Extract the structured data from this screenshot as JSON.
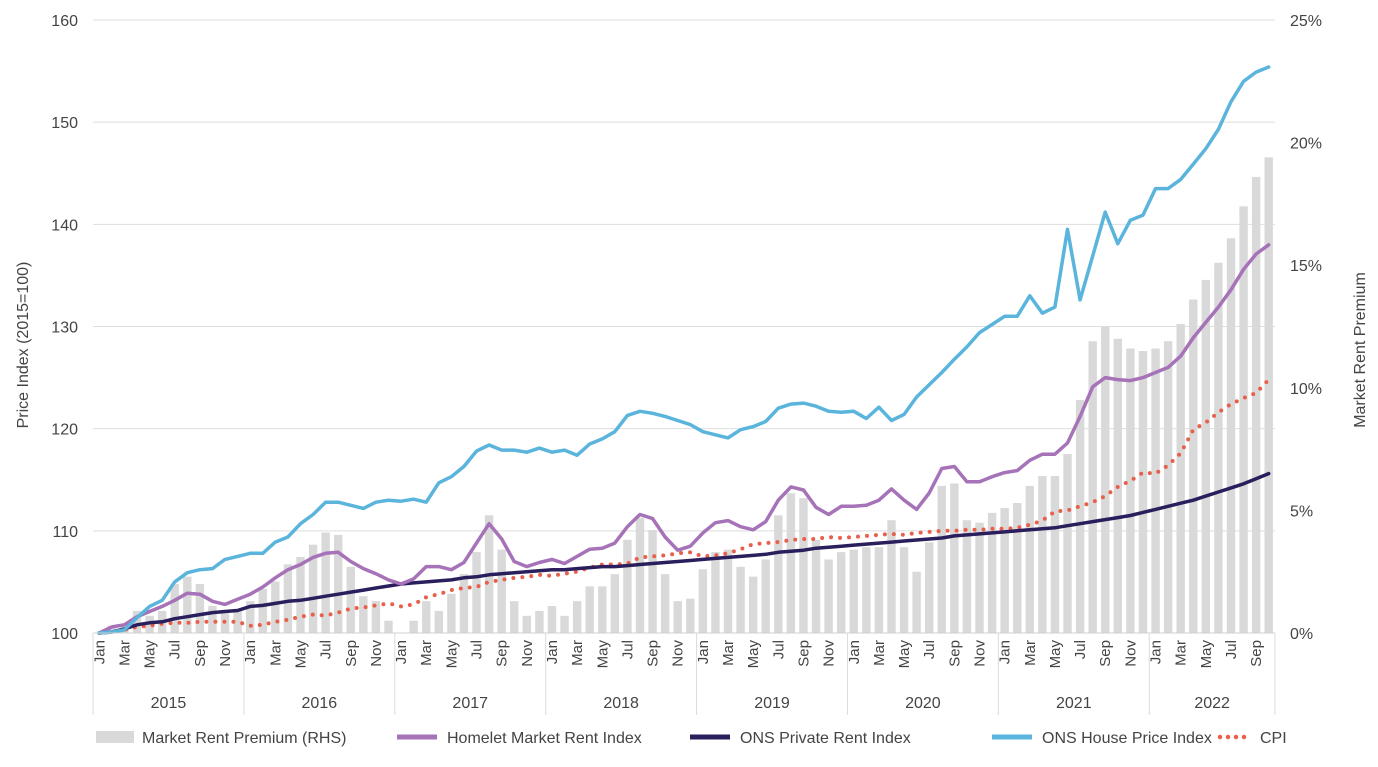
{
  "chart_data": {
    "type": "bar+line",
    "title": "",
    "ylabel": "Price Index (2015=100)",
    "y2label": "Market Rent Premium",
    "ylim": [
      100,
      160
    ],
    "yticks": [
      "100",
      "110",
      "120",
      "130",
      "140",
      "150",
      "160"
    ],
    "y2lim": [
      0,
      25
    ],
    "y2ticks": [
      "0%",
      "5%",
      "10%",
      "15%",
      "20%",
      "25%"
    ],
    "grid": true,
    "legend_position": "bottom",
    "x_axis": {
      "period": [
        "Jan 2015",
        "Oct 2022"
      ],
      "frequency": "monthly",
      "years": [
        "2015",
        "2016",
        "2017",
        "2018",
        "2019",
        "2020",
        "2021",
        "2022"
      ],
      "month_tick_labels": [
        "Jan",
        "Mar",
        "May",
        "Jul",
        "Sep",
        "Nov"
      ]
    },
    "series": [
      {
        "name": "Market Rent Premium (RHS)",
        "type": "bar",
        "axis": "right",
        "color": "#d9d9d9",
        "values": [
          0,
          0.3,
          0.3,
          0.9,
          0.7,
          0.9,
          2.0,
          2.3,
          2.0,
          1.1,
          0.8,
          0.9,
          1.3,
          1.8,
          2.1,
          2.8,
          3.1,
          3.6,
          4.1,
          4.0,
          2.7,
          1.5,
          1.3,
          0.5,
          0,
          0.5,
          1.3,
          0.9,
          1.6,
          2.4,
          3.3,
          4.8,
          3.4,
          1.3,
          0.7,
          0.9,
          1.1,
          0.7,
          1.3,
          1.9,
          1.9,
          2.4,
          3.8,
          4.7,
          4.2,
          2.4,
          1.3,
          1.4,
          2.6,
          3.3,
          3.4,
          2.7,
          2.3,
          3.0,
          4.8,
          5.7,
          5.5,
          3.8,
          3.0,
          3.3,
          3.4,
          3.5,
          3.5,
          4.6,
          3.5,
          2.5,
          3.7,
          6.0,
          6.1,
          4.6,
          4.5,
          4.9,
          5.1,
          5.3,
          6.0,
          6.4,
          6.4,
          7.3,
          9.5,
          11.9,
          12.5,
          12.0,
          11.6,
          11.5,
          11.6,
          11.9,
          12.6,
          13.6,
          14.4,
          15.1,
          16.1,
          17.4,
          18.6,
          19.4
        ]
      },
      {
        "name": "Homelet Market Rent Index",
        "type": "line",
        "axis": "left",
        "color": "#a672b8",
        "values": [
          100,
          100.6,
          100.8,
          101.6,
          102.1,
          102.6,
          103.2,
          103.9,
          103.8,
          103.1,
          102.8,
          103.3,
          103.8,
          104.5,
          105.4,
          106.2,
          106.7,
          107.4,
          107.8,
          107.9,
          107.0,
          106.3,
          105.8,
          105.2,
          104.8,
          105.3,
          106.5,
          106.5,
          106.2,
          106.9,
          108.8,
          110.7,
          109.2,
          107.0,
          106.5,
          106.9,
          107.2,
          106.8,
          107.5,
          108.2,
          108.3,
          108.8,
          110.4,
          111.6,
          111.2,
          109.4,
          108.1,
          108.5,
          109.8,
          110.8,
          111.0,
          110.4,
          110.1,
          110.9,
          113.0,
          114.3,
          114.0,
          112.3,
          111.6,
          112.4,
          112.4,
          112.5,
          113.0,
          114.1,
          113.0,
          112.1,
          113.7,
          116.1,
          116.3,
          114.8,
          114.8,
          115.3,
          115.7,
          115.9,
          116.9,
          117.5,
          117.5,
          118.6,
          121.2,
          124.1,
          125.0,
          124.8,
          124.7,
          125.0,
          125.5,
          126.0,
          127.1,
          128.9,
          130.4,
          131.9,
          133.6,
          135.6,
          137.1,
          138.0
        ]
      },
      {
        "name": "ONS Private Rent Index",
        "type": "line",
        "axis": "left",
        "color": "#2a1f5c",
        "values": [
          100,
          100.1,
          100.4,
          100.8,
          101.0,
          101.1,
          101.4,
          101.6,
          101.8,
          102.0,
          102.1,
          102.2,
          102.6,
          102.7,
          102.9,
          103.1,
          103.2,
          103.4,
          103.6,
          103.8,
          104.0,
          104.2,
          104.4,
          104.6,
          104.8,
          104.9,
          105.0,
          105.1,
          105.2,
          105.4,
          105.5,
          105.7,
          105.8,
          105.9,
          106.0,
          106.1,
          106.2,
          106.2,
          106.3,
          106.4,
          106.5,
          106.5,
          106.6,
          106.7,
          106.8,
          106.9,
          107.0,
          107.1,
          107.2,
          107.3,
          107.4,
          107.5,
          107.6,
          107.7,
          107.9,
          108.0,
          108.1,
          108.3,
          108.4,
          108.5,
          108.6,
          108.7,
          108.8,
          108.9,
          109.0,
          109.1,
          109.2,
          109.3,
          109.5,
          109.6,
          109.7,
          109.8,
          109.9,
          110.0,
          110.1,
          110.2,
          110.3,
          110.5,
          110.7,
          110.9,
          111.1,
          111.3,
          111.5,
          111.8,
          112.1,
          112.4,
          112.7,
          113.0,
          113.4,
          113.8,
          114.2,
          114.6,
          115.1,
          115.6
        ]
      },
      {
        "name": "ONS House Price Index",
        "type": "line",
        "axis": "left",
        "color": "#5ab4dc",
        "values": [
          100,
          100.1,
          100.3,
          101.5,
          102.6,
          103.2,
          105.0,
          105.9,
          106.2,
          106.3,
          107.2,
          107.5,
          107.8,
          107.8,
          108.9,
          109.4,
          110.7,
          111.6,
          112.8,
          112.8,
          112.5,
          112.2,
          112.8,
          113.0,
          112.9,
          113.1,
          112.8,
          114.7,
          115.3,
          116.3,
          117.8,
          118.4,
          117.9,
          117.9,
          117.7,
          118.1,
          117.7,
          117.9,
          117.4,
          118.5,
          119.0,
          119.7,
          121.3,
          121.7,
          121.5,
          121.2,
          120.8,
          120.4,
          119.7,
          119.4,
          119.1,
          119.9,
          120.2,
          120.7,
          122.0,
          122.4,
          122.5,
          122.2,
          121.7,
          121.6,
          121.7,
          121.0,
          122.1,
          120.8,
          121.4,
          123.1,
          124.3,
          125.5,
          126.8,
          128.0,
          129.4,
          130.2,
          131.0,
          131.0,
          133.0,
          131.3,
          131.9,
          139.5,
          132.6,
          136.9,
          141.2,
          138.1,
          140.4,
          140.9,
          143.5,
          143.5,
          144.4,
          145.9,
          147.4,
          149.3,
          152.0,
          154.0,
          154.9,
          155.4
        ]
      },
      {
        "name": "CPI",
        "type": "dotted-line",
        "axis": "left",
        "color": "#e8604c",
        "values": [
          100,
          100.1,
          100.3,
          100.6,
          100.7,
          100.9,
          101.0,
          101.0,
          101.1,
          101.1,
          101.1,
          101.1,
          100.7,
          100.8,
          101.1,
          101.3,
          101.6,
          101.8,
          101.7,
          102.0,
          102.4,
          102.5,
          102.7,
          102.9,
          102.6,
          102.8,
          103.5,
          103.8,
          104.2,
          104.4,
          104.5,
          105.0,
          105.2,
          105.4,
          105.5,
          105.7,
          105.6,
          105.8,
          106.0,
          106.4,
          106.7,
          106.7,
          106.8,
          107.4,
          107.5,
          107.6,
          107.8,
          107.9,
          107.5,
          107.6,
          107.8,
          108.2,
          108.7,
          108.8,
          108.9,
          109.1,
          109.2,
          109.2,
          109.4,
          109.3,
          109.4,
          109.5,
          109.6,
          109.7,
          109.6,
          109.8,
          109.9,
          110.0,
          110.0,
          110.1,
          110.1,
          110.2,
          110.2,
          110.3,
          110.6,
          111.0,
          111.9,
          112.0,
          112.4,
          112.8,
          113.4,
          114.3,
          114.9,
          115.7,
          115.6,
          116.4,
          117.6,
          119.9,
          120.6,
          121.6,
          122.4,
          123.0,
          123.5,
          124.8
        ]
      }
    ]
  }
}
